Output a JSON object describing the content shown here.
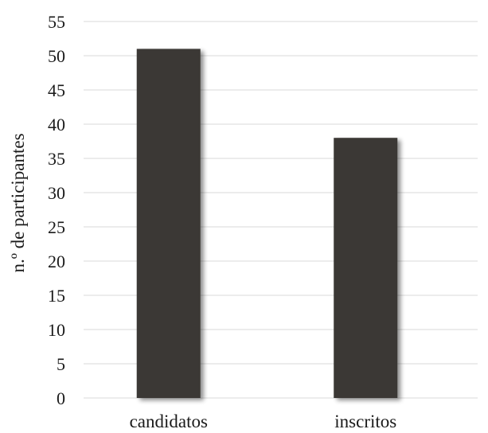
{
  "chart_data": {
    "type": "bar",
    "title": "",
    "xlabel": "",
    "ylabel": "n.º de participantes",
    "categories": [
      "candidatos",
      "inscritos"
    ],
    "values": [
      51,
      38
    ],
    "ylim": [
      0,
      55
    ],
    "yticks": [
      0,
      5,
      10,
      15,
      20,
      25,
      30,
      35,
      40,
      45,
      50,
      55
    ],
    "grid": true,
    "legend": "none",
    "bar_color": "#3a3735",
    "bar_shadow_color": "#b3b3b3",
    "grid_color": "#d9d9d9"
  }
}
